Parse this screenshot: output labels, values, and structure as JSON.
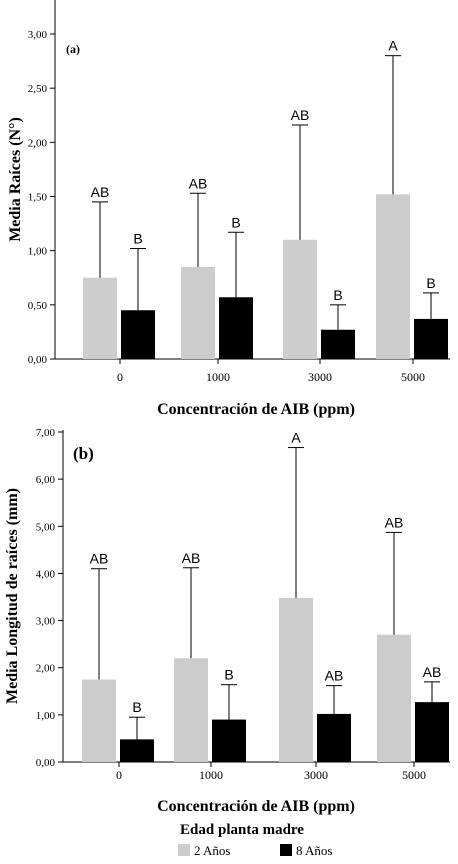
{
  "colors": {
    "age_2": "#cccccc",
    "age_8": "#000000",
    "axis": "#000000",
    "text": "#000000"
  },
  "legend": {
    "title": "Edad planta madre",
    "items": [
      {
        "label": "2 Años",
        "color": "#cccccc"
      },
      {
        "label": "8 Años",
        "color": "#000000"
      }
    ]
  },
  "chart_data": [
    {
      "type": "bar",
      "panel_label": "(a)",
      "ylabel": "Media Raíces (N°)",
      "xlabel": "Concentración de AIB (ppm)",
      "categories": [
        "0",
        "1000",
        "3000",
        "5000"
      ],
      "ylim": [
        0,
        3
      ],
      "yticks": [
        "0,00",
        "0,50",
        "1,00",
        "1,50",
        "2,00",
        "2,50",
        "3,00"
      ],
      "grid": false,
      "series": [
        {
          "name": "2 Años",
          "color": "#cccccc",
          "values": [
            0.75,
            0.85,
            1.1,
            1.52
          ],
          "error_upper": [
            1.45,
            1.53,
            2.16,
            2.8
          ],
          "letters": [
            "AB",
            "AB",
            "AB",
            "A"
          ]
        },
        {
          "name": "8 Años",
          "color": "#000000",
          "values": [
            0.45,
            0.57,
            0.27,
            0.37
          ],
          "error_upper": [
            1.02,
            1.17,
            0.5,
            0.61
          ],
          "letters": [
            "B",
            "B",
            "B",
            "B"
          ]
        }
      ]
    },
    {
      "type": "bar",
      "panel_label": "(b)",
      "ylabel": "Media Longitud de raíces (mm)",
      "xlabel": "Concentración de AIB (ppm)",
      "categories": [
        "0",
        "1000",
        "3000",
        "5000"
      ],
      "ylim": [
        0,
        7
      ],
      "yticks": [
        "0,00",
        "1,00",
        "2,00",
        "3,00",
        "4,00",
        "5,00",
        "6,00",
        "7,00"
      ],
      "grid": false,
      "series": [
        {
          "name": "2 Años",
          "color": "#cccccc",
          "values": [
            1.75,
            2.2,
            3.48,
            2.7
          ],
          "error_upper": [
            4.1,
            4.12,
            6.67,
            4.87
          ],
          "letters": [
            "AB",
            "AB",
            "A",
            "AB"
          ]
        },
        {
          "name": "8 Años",
          "color": "#000000",
          "values": [
            0.48,
            0.9,
            1.02,
            1.27
          ],
          "error_upper": [
            0.95,
            1.64,
            1.62,
            1.7
          ],
          "letters": [
            "B",
            "B",
            "AB",
            "AB"
          ]
        }
      ]
    }
  ]
}
